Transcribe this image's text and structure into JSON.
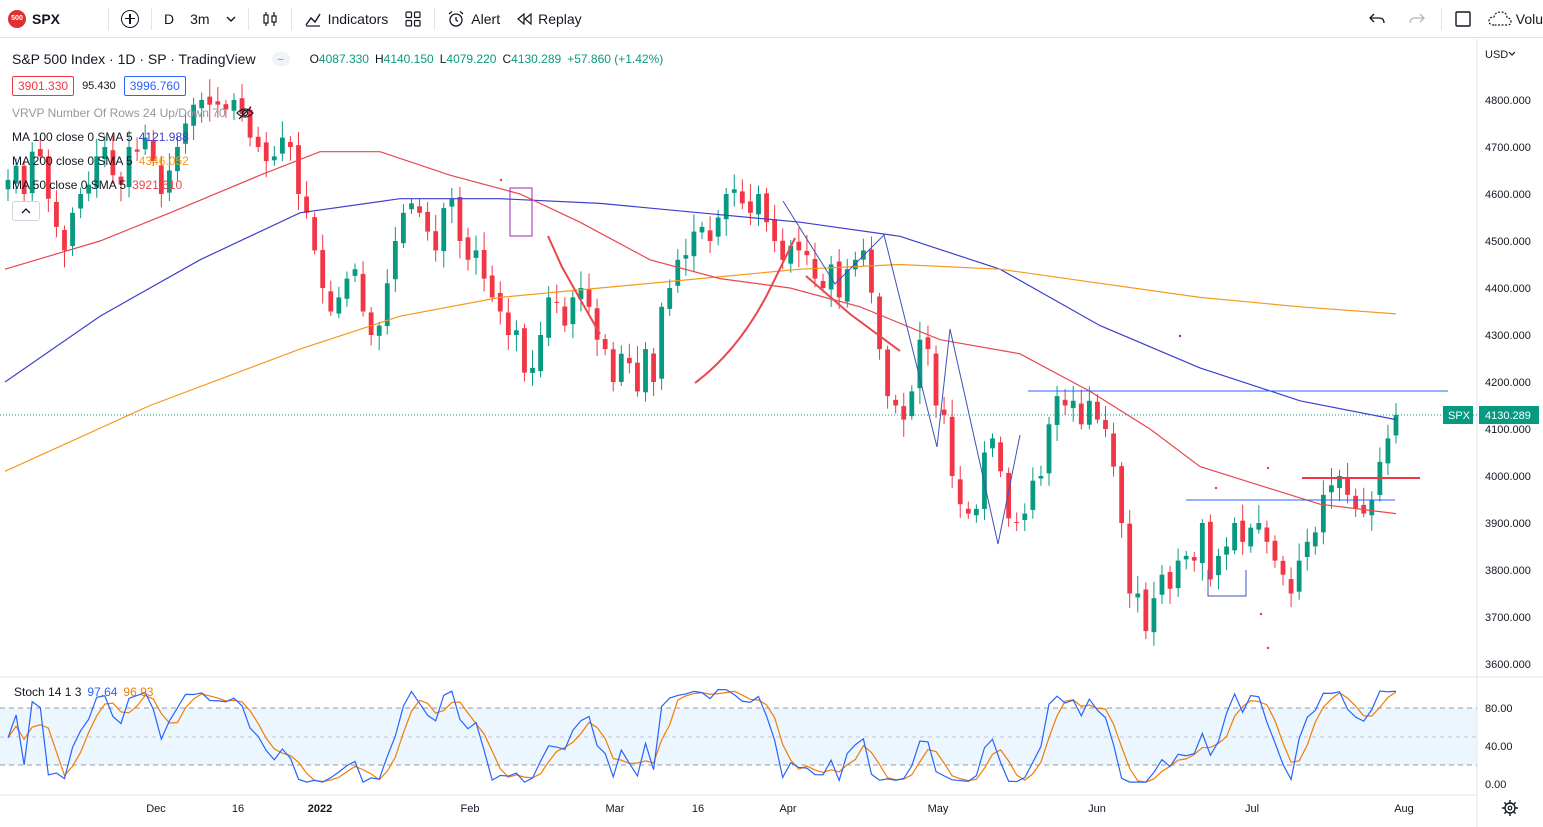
{
  "toolbar": {
    "symbol_badge": "500",
    "symbol": "SPX",
    "interval_d": "D",
    "interval_3m": "3m",
    "indicators": "Indicators",
    "alert": "Alert",
    "replay": "Replay",
    "volume_cut": "Volu"
  },
  "legend": {
    "title": "S&P 500 Index · 1D · SP · TradingView",
    "o_label": "O",
    "o": "4087.330",
    "h_label": "H",
    "h": "4140.150",
    "l_label": "L",
    "l": "4079.220",
    "c_label": "C",
    "c": "4130.289",
    "change": "+57.860 (+1.42%)",
    "bid": "3901.330",
    "spread": "95.430",
    "ask": "3996.760",
    "vrvp": "VRVP Number Of Rows 24 Up/Down 70",
    "ma100": "MA 100 close 0 SMA 5",
    "ma100_val": "4121.988",
    "ma200": "MA 200 close 0 SMA 5",
    "ma200_val": "4346.052",
    "ma50": "MA 50 close 0 SMA 5",
    "ma50_val": "3921.610"
  },
  "axis": {
    "currency": "USD",
    "current_symbol": "SPX",
    "current_price": "4130.289"
  },
  "stoch": {
    "label": "Stoch 14 1 3",
    "k": "97.64",
    "d": "96.93"
  },
  "colors": {
    "up": "#089981",
    "down": "#f23645",
    "ma100": "#3f3fcf",
    "ma200": "#f59a1b",
    "ma50": "#e9474f",
    "stoch_k": "#2962ff",
    "stoch_d": "#f57c00"
  },
  "chart_data": {
    "type": "candlestick",
    "price_ticks": [
      4800,
      4700,
      4600,
      4500,
      4400,
      4300,
      4200,
      4100,
      4000,
      3900,
      3800,
      3700,
      3600
    ],
    "price_tick_labels": [
      "4800.000",
      "4700.000",
      "4600.000",
      "4500.000",
      "4400.000",
      "4300.000",
      "4200.000",
      "4100.000",
      "4000.000",
      "3900.000",
      "3800.000",
      "3700.000",
      "3600.000"
    ],
    "ylim": [
      3570,
      4880
    ],
    "time_labels": [
      "Dec",
      "16",
      "2022",
      "Feb",
      "Mar",
      "16",
      "Apr",
      "May",
      "Jun",
      "Jul",
      "Aug"
    ],
    "stoch_ticks": [
      "80.00",
      "40.00",
      "0.00"
    ],
    "closes": [
      4630,
      4660,
      4600,
      4690,
      4680,
      4590,
      4530,
      4480,
      4560,
      4600,
      4620,
      4680,
      4700,
      4640,
      4620,
      4700,
      4690,
      4720,
      4670,
      4600,
      4650,
      4700,
      4750,
      4790,
      4800,
      4790,
      4790,
      4780,
      4800,
      4770,
      4720,
      4700,
      4670,
      4680,
      4720,
      4700,
      4600,
      4560,
      4480,
      4400,
      4350,
      4380,
      4420,
      4440,
      4350,
      4300,
      4320,
      4410,
      4500,
      4560,
      4580,
      4560,
      4520,
      4480,
      4570,
      4590,
      4500,
      4460,
      4480,
      4420,
      4380,
      4350,
      4300,
      4310,
      4220,
      4230,
      4300,
      4380,
      4370,
      4320,
      4380,
      4400,
      4360,
      4290,
      4270,
      4200,
      4260,
      4240,
      4180,
      4270,
      4200,
      4360,
      4400,
      4460,
      4470,
      4520,
      4530,
      4500,
      4550,
      4600,
      4610,
      4580,
      4560,
      4600,
      4540,
      4500,
      4460,
      4490,
      4480,
      4470,
      4420,
      4400,
      4450,
      4380,
      4440,
      4460,
      4480,
      4390,
      4270,
      4170,
      4150,
      4120,
      4180,
      4290,
      4270,
      4150,
      4130,
      4000,
      3940,
      3920,
      3930,
      4050,
      4080,
      4010,
      3910,
      3900,
      3920,
      3990,
      4000,
      4110,
      4170,
      4150,
      4160,
      4110,
      4160,
      4120,
      4100,
      4020,
      3900,
      3750,
      3750,
      3670,
      3740,
      3790,
      3760,
      3820,
      3830,
      3820,
      3900,
      3780,
      3830,
      3850,
      3900,
      3860,
      3890,
      3900,
      3860,
      3820,
      3790,
      3750,
      3820,
      3860,
      3880,
      3960,
      3980,
      4000,
      3960,
      3930,
      3920,
      3950,
      4030,
      4080,
      4130
    ]
  }
}
